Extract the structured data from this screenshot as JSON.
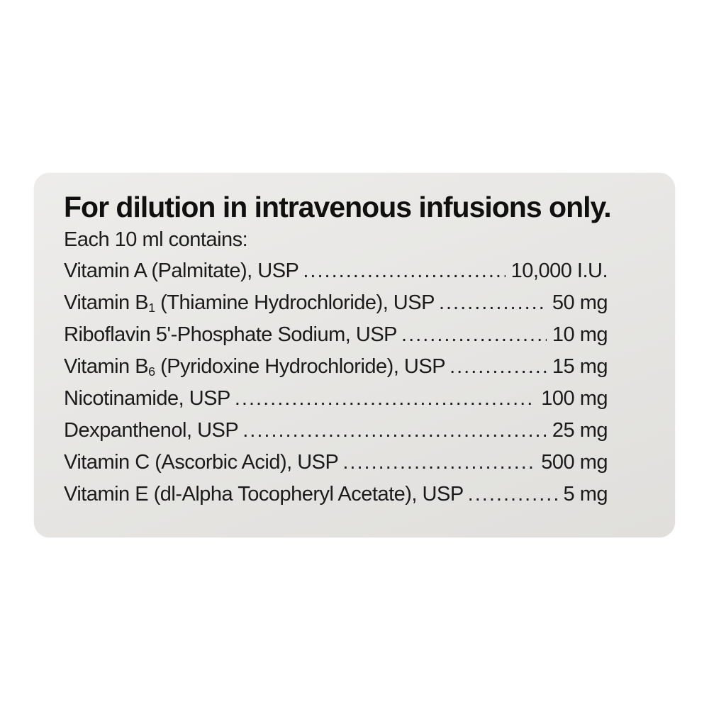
{
  "label": {
    "title": "For dilution in intravenous infusions only.",
    "subtitle": "Each 10 ml contains:",
    "ingredients": [
      {
        "pre": "Vitamin A (Palmitate), USP",
        "sub": "",
        "post": "",
        "value": "10,000 I.U."
      },
      {
        "pre": "Vitamin B",
        "sub": "1",
        "post": " (Thiamine Hydrochloride), USP",
        "value": "50 mg"
      },
      {
        "pre": "Riboflavin 5'-Phosphate Sodium, USP",
        "sub": "",
        "post": "",
        "value": "10 mg"
      },
      {
        "pre": "Vitamin B",
        "sub": "6",
        "post": " (Pyridoxine Hydrochloride), USP",
        "value": "15 mg"
      },
      {
        "pre": "Nicotinamide, USP",
        "sub": "",
        "post": "",
        "value": "100 mg"
      },
      {
        "pre": "Dexpanthenol, USP",
        "sub": "",
        "post": "",
        "value": "25 mg"
      },
      {
        "pre": "Vitamin C (Ascorbic Acid), USP",
        "sub": "",
        "post": "",
        "value": "500 mg"
      },
      {
        "pre": "Vitamin E (dl-Alpha Tocopheryl Acetate), USP",
        "sub": "",
        "post": "",
        "value": "5 mg"
      }
    ],
    "colors": {
      "page_bg": "#ffffff",
      "card_bg": "#e7e6e3",
      "text": "#1b1b1b"
    }
  }
}
